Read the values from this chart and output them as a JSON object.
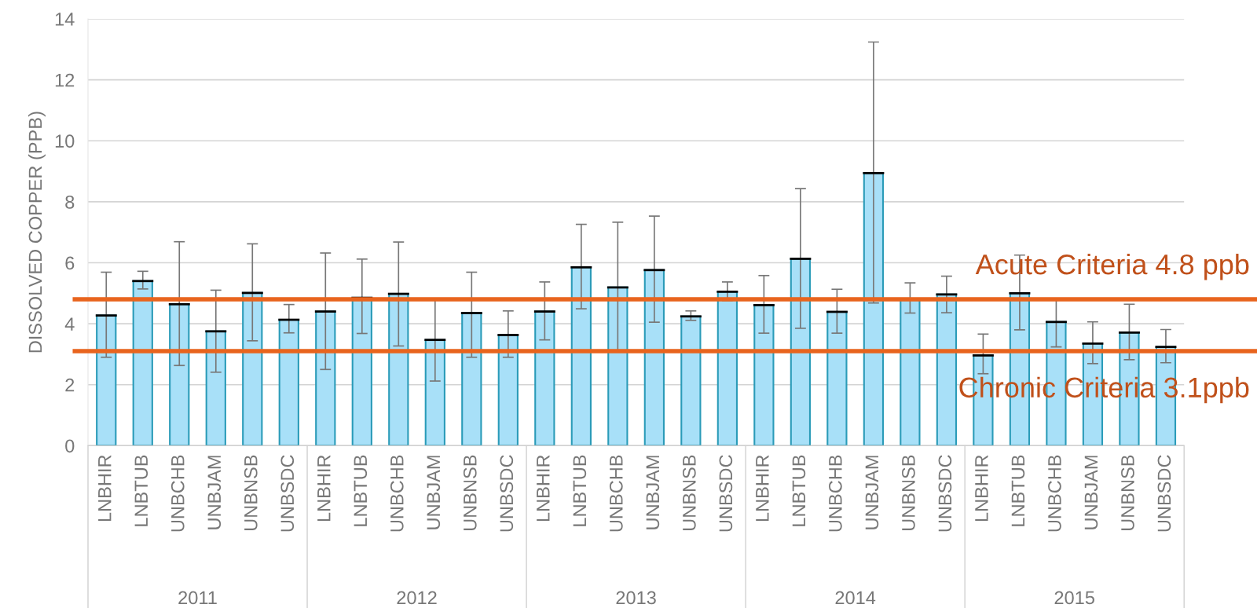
{
  "chart_data": {
    "type": "bar",
    "ylabel": "DISSOLVED COPPER (PPB)",
    "categories": [
      "LNBHIR",
      "LNBTUB",
      "UNBCHB",
      "UNBJAM",
      "UNBNSB",
      "UNBSDC",
      "LNBHIR",
      "LNBTUB",
      "UNBCHB",
      "UNBJAM",
      "UNBNSB",
      "UNBSDC",
      "LNBHIR",
      "LNBTUB",
      "UNBCHB",
      "UNBJAM",
      "UNBNSB",
      "UNBSDC",
      "LNBHIR",
      "LNBTUB",
      "UNBCHB",
      "UNBJAM",
      "UNBNSB",
      "UNBSDC",
      "LNBHIR",
      "LNBTUB",
      "UNBCHB",
      "UNBJAM",
      "UNBNSB",
      "UNBSDC"
    ],
    "annotations": [
      "2011",
      "2012",
      "2013",
      "2014",
      "2015"
    ],
    "values": [
      4.27,
      5.4,
      4.64,
      3.75,
      5.01,
      4.13,
      4.4,
      4.85,
      4.98,
      3.47,
      4.35,
      3.63,
      4.4,
      5.85,
      5.19,
      5.76,
      4.24,
      5.05,
      4.61,
      6.13,
      4.39,
      8.94,
      4.81,
      4.96,
      2.96,
      5.0,
      4.06,
      3.35,
      3.71,
      3.24
    ],
    "errors": [
      [
        2.9,
        5.69
      ],
      [
        5.14,
        5.72
      ],
      [
        2.63,
        6.69
      ],
      [
        2.41,
        5.1
      ],
      [
        3.44,
        6.62
      ],
      [
        3.7,
        4.63
      ],
      [
        2.5,
        6.32
      ],
      [
        3.68,
        6.12
      ],
      [
        3.27,
        6.68
      ],
      [
        2.12,
        4.8
      ],
      [
        2.9,
        5.69
      ],
      [
        2.9,
        4.42
      ],
      [
        3.47,
        5.37
      ],
      [
        4.49,
        7.26
      ],
      [
        3.11,
        7.33
      ],
      [
        4.05,
        7.53
      ],
      [
        4.11,
        4.42
      ],
      [
        4.76,
        5.37
      ],
      [
        3.69,
        5.58
      ],
      [
        3.85,
        8.43
      ],
      [
        3.69,
        5.13
      ],
      [
        4.68,
        13.24
      ],
      [
        4.35,
        5.34
      ],
      [
        4.36,
        5.56
      ],
      [
        2.36,
        3.66
      ],
      [
        3.8,
        6.25
      ],
      [
        3.24,
        4.83
      ],
      [
        2.69,
        4.06
      ],
      [
        2.82,
        4.64
      ],
      [
        2.72,
        3.81
      ]
    ],
    "color": "#a8e0f8",
    "ylim": [
      0,
      14
    ],
    "yticks": [
      0,
      2,
      4,
      6,
      8,
      10,
      12,
      14
    ],
    "grid": "y",
    "ref_lines": [
      {
        "axis": "y",
        "value": 4.8,
        "label": "Acute Criteria 4.8 ppb",
        "color": "#e8641e"
      },
      {
        "axis": "y",
        "value": 3.1,
        "label": "Chronic Criteria 3.1ppb",
        "color": "#e8641e"
      }
    ]
  }
}
